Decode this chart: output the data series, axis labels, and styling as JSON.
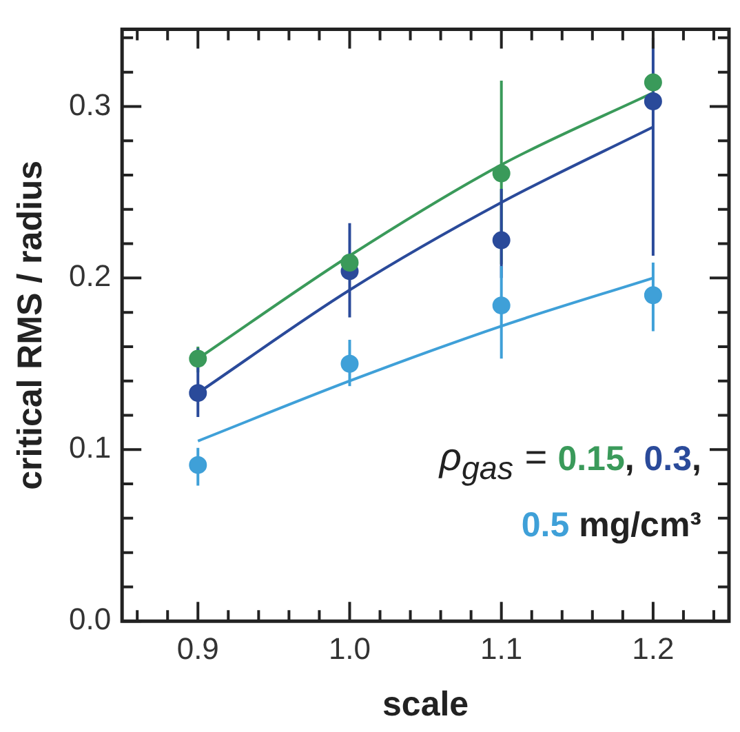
{
  "chart_data": {
    "type": "scatter",
    "xlabel": "scale",
    "ylabel": "critical RMS / radius",
    "x": [
      0.9,
      1.0,
      1.1,
      1.2
    ],
    "series": [
      {
        "name": "0.15",
        "marker": "circle",
        "color": "#3a9a5a",
        "values": [
          0.153,
          0.209,
          0.261,
          0.314
        ],
        "errors": [
          [
            0.145,
            0.16
          ],
          null,
          [
            0.208,
            0.315
          ],
          null
        ]
      },
      {
        "name": "0.3",
        "marker": "circle",
        "color": "#2a4a9a",
        "values": [
          0.133,
          0.204,
          0.222,
          0.303
        ],
        "errors": [
          [
            0.119,
            0.159
          ],
          [
            0.177,
            0.232
          ],
          [
            0.2,
            0.252
          ],
          [
            0.213,
            0.34
          ]
        ]
      },
      {
        "name": "0.5",
        "marker": "circle",
        "color": "#3fa0d8",
        "values": [
          0.091,
          0.15,
          0.184,
          0.19
        ],
        "errors": [
          [
            0.079,
            0.101
          ],
          [
            0.137,
            0.164
          ],
          [
            0.153,
            0.207
          ],
          [
            0.169,
            0.209
          ]
        ]
      },
      {
        "type": "line",
        "marker": "none",
        "color": "#3a9a5a",
        "x": [
          0.9,
          1.0,
          1.1,
          1.2
        ],
        "values": [
          0.153,
          0.213,
          0.266,
          0.308
        ]
      },
      {
        "type": "line",
        "marker": "none",
        "color": "#2a4a9a",
        "x": [
          0.9,
          1.0,
          1.1,
          1.2
        ],
        "values": [
          0.133,
          0.193,
          0.244,
          0.288
        ]
      },
      {
        "type": "line",
        "marker": "none",
        "color": "#3fa0d8",
        "x": [
          0.9,
          1.0,
          1.1,
          1.2
        ],
        "values": [
          0.105,
          0.14,
          0.172,
          0.2
        ]
      }
    ],
    "xlim": [
      0.85,
      1.25
    ],
    "xticks": [
      {
        "value": 0.86,
        "label": null
      },
      {
        "value": 0.88,
        "label": null
      },
      {
        "value": 0.9,
        "label": "0.9"
      },
      {
        "value": 0.92,
        "label": null
      },
      {
        "value": 0.94,
        "label": null
      },
      {
        "value": 0.96,
        "label": null
      },
      {
        "value": 0.98,
        "label": null
      },
      {
        "value": 1.0,
        "label": "1.0"
      },
      {
        "value": 1.02,
        "label": null
      },
      {
        "value": 1.04,
        "label": null
      },
      {
        "value": 1.06,
        "label": null
      },
      {
        "value": 1.08,
        "label": null
      },
      {
        "value": 1.1,
        "label": "1.1"
      },
      {
        "value": 1.12,
        "label": null
      },
      {
        "value": 1.14,
        "label": null
      },
      {
        "value": 1.16,
        "label": null
      },
      {
        "value": 1.18,
        "label": null
      },
      {
        "value": 1.2,
        "label": "1.2"
      },
      {
        "value": 1.22,
        "label": null
      },
      {
        "value": 1.24,
        "label": null
      }
    ],
    "ylim": [
      0,
      0.345
    ],
    "yticks": [
      {
        "value": 0,
        "label": "0.0"
      },
      {
        "value": 0.02,
        "label": null
      },
      {
        "value": 0.04,
        "label": null
      },
      {
        "value": 0.06,
        "label": null
      },
      {
        "value": 0.08,
        "label": null
      },
      {
        "value": 0.1,
        "label": "0.1"
      },
      {
        "value": 0.12,
        "label": null
      },
      {
        "value": 0.14,
        "label": null
      },
      {
        "value": 0.16,
        "label": null
      },
      {
        "value": 0.18,
        "label": null
      },
      {
        "value": 0.2,
        "label": "0.2"
      },
      {
        "value": 0.22,
        "label": null
      },
      {
        "value": 0.24,
        "label": null
      },
      {
        "value": 0.26,
        "label": null
      },
      {
        "value": 0.28,
        "label": null
      },
      {
        "value": 0.3,
        "label": "0.3"
      },
      {
        "value": 0.32,
        "label": null
      },
      {
        "value": 0.34,
        "label": null
      }
    ],
    "legend": "bottom right",
    "legend_title": "ρ$_{gas}$ =",
    "annotations": [
      ",",
      ",",
      "mg/cm³"
    ],
    "line_style": "solid",
    "grid": false
  }
}
